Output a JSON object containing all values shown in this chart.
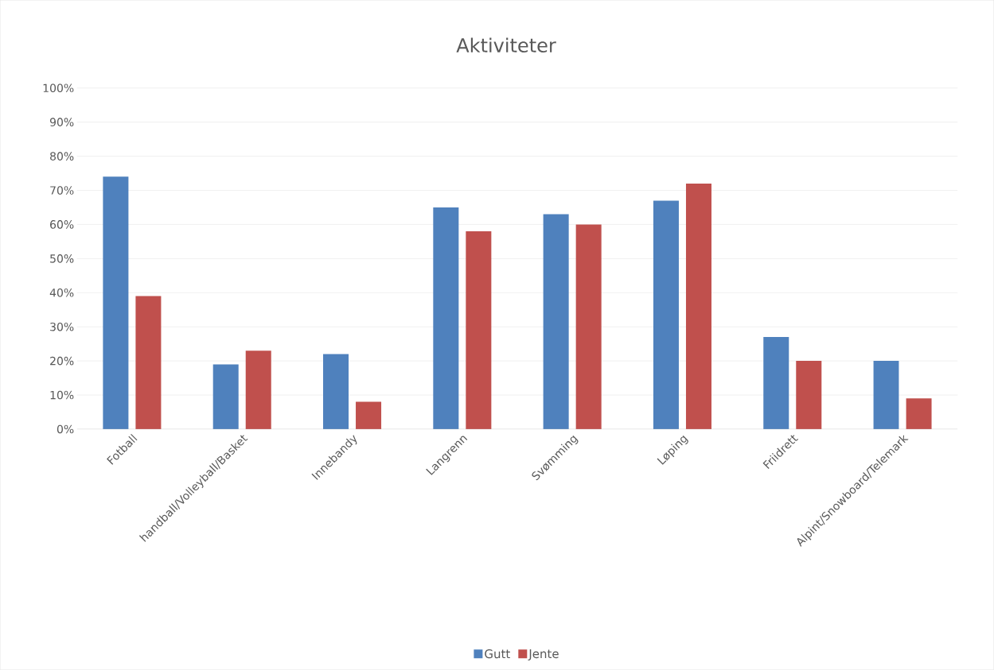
{
  "chart_data": {
    "type": "bar",
    "title": "Aktiviteter",
    "categories": [
      "Fotball",
      "handball/Volleyball/Basket",
      "Innebandy",
      "Langrenn",
      "Svømming",
      "Løping",
      "Friidrett",
      "Alpint/Snowboard/Telemark"
    ],
    "series": [
      {
        "name": "Gutt",
        "color": "#4f81bd",
        "values": [
          74,
          19,
          22,
          65,
          63,
          67,
          27,
          20
        ]
      },
      {
        "name": "Jente",
        "color": "#c0504d",
        "values": [
          39,
          23,
          8,
          58,
          60,
          72,
          20,
          9
        ]
      }
    ],
    "ylim": [
      0,
      100
    ],
    "yticks": [
      {
        "value": 0,
        "label": "0%"
      },
      {
        "value": 10,
        "label": "10%"
      },
      {
        "value": 20,
        "label": "20%"
      },
      {
        "value": 30,
        "label": "30%"
      },
      {
        "value": 40,
        "label": "40%"
      },
      {
        "value": 50,
        "label": "50%"
      },
      {
        "value": 60,
        "label": "60%"
      },
      {
        "value": 70,
        "label": "70%"
      },
      {
        "value": 80,
        "label": "80%"
      },
      {
        "value": 90,
        "label": "90%"
      },
      {
        "value": 100,
        "label": "100%"
      }
    ],
    "grid": "y",
    "legend": "bottom"
  }
}
